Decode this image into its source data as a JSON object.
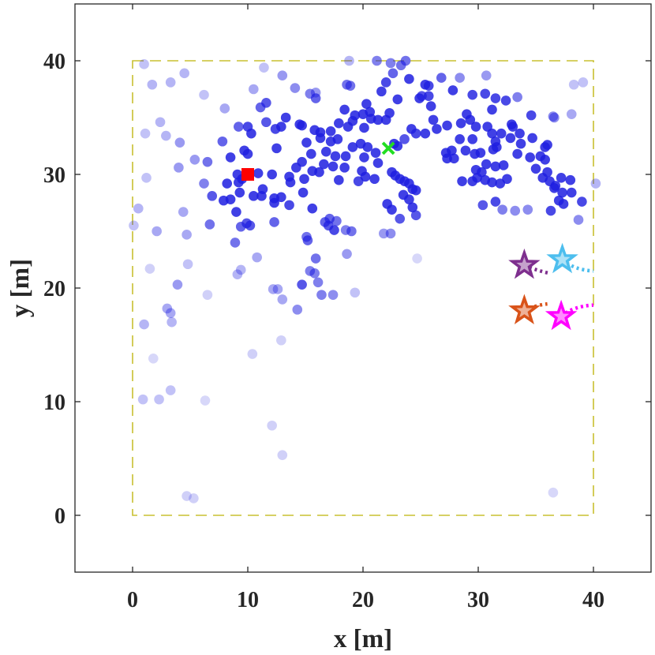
{
  "chart_data": {
    "type": "scatter",
    "xlabel": "x [m]",
    "ylabel": "y [m]",
    "xlim": [
      -5,
      45
    ],
    "ylim": [
      -5,
      45
    ],
    "xticks": [
      "0",
      "10",
      "20",
      "30",
      "40"
    ],
    "yticks": [
      "0",
      "10",
      "20",
      "30",
      "40"
    ],
    "grid": false,
    "legend": "none",
    "boundary": {
      "x": [
        0,
        40
      ],
      "y": [
        0,
        40
      ],
      "style": "dashed",
      "color": "#c8c030"
    },
    "colors": {
      "points": "#1f1fe0",
      "boundary": "#c8c030",
      "square": "#ff0000",
      "cross": "#22dd22",
      "star_purple": "#7e2f8e",
      "star_cyan": "#4dbeee",
      "star_orange": "#d95319",
      "star_magenta": "#ff00ff"
    },
    "points": [
      [
        18.8,
        40.0
      ],
      [
        21.2,
        40.0
      ],
      [
        22.4,
        39.8
      ],
      [
        23.7,
        40.0
      ],
      [
        23.3,
        39.6
      ],
      [
        22.6,
        38.9
      ],
      [
        25.4,
        37.9
      ],
      [
        26.8,
        38.5
      ],
      [
        28.4,
        38.5
      ],
      [
        30.7,
        38.7
      ],
      [
        24.0,
        38.4
      ],
      [
        25.7,
        37.8
      ],
      [
        22.0,
        38.1
      ],
      [
        18.6,
        37.9
      ],
      [
        18.9,
        37.8
      ],
      [
        21.6,
        37.3
      ],
      [
        15.4,
        37.1
      ],
      [
        15.9,
        37.2
      ],
      [
        15.9,
        36.7
      ],
      [
        20.3,
        36.2
      ],
      [
        25.7,
        36.9
      ],
      [
        24.9,
        36.7
      ],
      [
        25.1,
        36.9
      ],
      [
        25.9,
        36.0
      ],
      [
        23.0,
        36.6
      ],
      [
        27.8,
        37.4
      ],
      [
        29.5,
        37.0
      ],
      [
        30.6,
        37.1
      ],
      [
        31.5,
        36.7
      ],
      [
        31.2,
        35.7
      ],
      [
        32.4,
        36.5
      ],
      [
        33.4,
        36.8
      ],
      [
        18.4,
        35.7
      ],
      [
        19.3,
        35.2
      ],
      [
        20.0,
        35.3
      ],
      [
        20.6,
        35.5
      ],
      [
        20.7,
        34.9
      ],
      [
        21.3,
        34.8
      ],
      [
        22.3,
        35.4
      ],
      [
        22.0,
        34.8
      ],
      [
        20.1,
        34.1
      ],
      [
        19.1,
        34.7
      ],
      [
        18.7,
        34.2
      ],
      [
        17.9,
        34.5
      ],
      [
        17.2,
        33.8
      ],
      [
        16.3,
        33.7
      ],
      [
        17.8,
        33.1
      ],
      [
        17.2,
        32.9
      ],
      [
        16.3,
        33.2
      ],
      [
        15.1,
        32.8
      ],
      [
        15.5,
        31.8
      ],
      [
        16.8,
        32.0
      ],
      [
        17.6,
        31.6
      ],
      [
        18.5,
        31.6
      ],
      [
        19.1,
        32.4
      ],
      [
        19.8,
        32.7
      ],
      [
        20.4,
        32.4
      ],
      [
        20.1,
        31.5
      ],
      [
        21.1,
        31.9
      ],
      [
        21.3,
        31.0
      ],
      [
        22.7,
        32.7
      ],
      [
        23.0,
        32.5
      ],
      [
        23.6,
        33.1
      ],
      [
        24.2,
        34.0
      ],
      [
        24.6,
        33.6
      ],
      [
        25.4,
        33.6
      ],
      [
        26.4,
        34.0
      ],
      [
        26.1,
        34.8
      ],
      [
        27.3,
        34.3
      ],
      [
        28.5,
        34.5
      ],
      [
        29.0,
        35.3
      ],
      [
        29.3,
        34.8
      ],
      [
        29.8,
        34.2
      ],
      [
        29.5,
        33.1
      ],
      [
        30.8,
        34.2
      ],
      [
        31.2,
        33.6
      ],
      [
        31.5,
        32.9
      ],
      [
        31.6,
        32.4
      ],
      [
        32.0,
        33.6
      ],
      [
        32.8,
        33.2
      ],
      [
        33.6,
        33.6
      ],
      [
        33.7,
        32.7
      ],
      [
        32.9,
        34.4
      ],
      [
        28.4,
        33.1
      ],
      [
        27.7,
        32.1
      ],
      [
        27.2,
        31.9
      ],
      [
        27.3,
        31.4
      ],
      [
        27.9,
        31.4
      ],
      [
        28.9,
        32.1
      ],
      [
        29.7,
        31.8
      ],
      [
        30.2,
        31.9
      ],
      [
        31.3,
        32.2
      ],
      [
        30.7,
        30.9
      ],
      [
        31.5,
        30.7
      ],
      [
        32.2,
        30.8
      ],
      [
        30.3,
        30.2
      ],
      [
        29.8,
        30.4
      ],
      [
        29.9,
        29.7
      ],
      [
        30.6,
        29.5
      ],
      [
        31.2,
        29.3
      ],
      [
        31.9,
        29.2
      ],
      [
        32.5,
        29.6
      ],
      [
        29.5,
        29.4
      ],
      [
        28.6,
        29.4
      ],
      [
        22.5,
        30.2
      ],
      [
        22.8,
        29.9
      ],
      [
        23.2,
        29.6
      ],
      [
        23.6,
        29.4
      ],
      [
        24.0,
        29.2
      ],
      [
        24.3,
        28.7
      ],
      [
        23.5,
        28.2
      ],
      [
        24.0,
        27.8
      ],
      [
        24.6,
        28.6
      ],
      [
        24.3,
        27.1
      ],
      [
        24.6,
        26.4
      ],
      [
        23.2,
        26.1
      ],
      [
        22.1,
        27.4
      ],
      [
        22.5,
        26.9
      ],
      [
        22.4,
        24.8
      ],
      [
        21.8,
        24.8
      ],
      [
        21.0,
        29.6
      ],
      [
        20.2,
        29.8
      ],
      [
        19.6,
        29.4
      ],
      [
        19.9,
        30.3
      ],
      [
        18.4,
        30.6
      ],
      [
        17.9,
        29.5
      ],
      [
        17.4,
        30.7
      ],
      [
        16.6,
        30.9
      ],
      [
        16.2,
        30.2
      ],
      [
        15.6,
        30.3
      ],
      [
        14.9,
        29.6
      ],
      [
        14.7,
        31.1
      ],
      [
        14.2,
        30.6
      ],
      [
        13.6,
        29.8
      ],
      [
        13.7,
        29.3
      ],
      [
        12.1,
        30.0
      ],
      [
        11.3,
        28.7
      ],
      [
        11.2,
        28.1
      ],
      [
        12.3,
        27.5
      ],
      [
        12.9,
        28.0
      ],
      [
        13.6,
        27.3
      ],
      [
        14.8,
        28.4
      ],
      [
        15.6,
        27.0
      ],
      [
        16.7,
        25.8
      ],
      [
        17.0,
        25.5
      ],
      [
        17.1,
        26.1
      ],
      [
        17.7,
        25.9
      ],
      [
        17.5,
        25.1
      ],
      [
        18.5,
        25.1
      ],
      [
        19.0,
        25.0
      ],
      [
        15.1,
        24.5
      ],
      [
        15.2,
        24.2
      ],
      [
        15.9,
        22.6
      ],
      [
        15.8,
        21.3
      ],
      [
        16.1,
        20.5
      ],
      [
        15.4,
        21.5
      ],
      [
        16.4,
        19.4
      ],
      [
        17.4,
        19.4
      ],
      [
        14.7,
        20.3
      ],
      [
        13.0,
        19.0
      ],
      [
        12.2,
        19.9
      ],
      [
        12.6,
        19.9
      ],
      [
        14.3,
        18.1
      ],
      [
        18.6,
        23.0
      ],
      [
        19.3,
        19.6
      ],
      [
        12.3,
        25.8
      ],
      [
        12.3,
        27.9
      ],
      [
        12.5,
        32.3
      ],
      [
        12.4,
        34.0
      ],
      [
        12.9,
        34.2
      ],
      [
        14.5,
        34.4
      ],
      [
        14.7,
        34.3
      ],
      [
        15.8,
        33.9
      ],
      [
        13.3,
        35.0
      ],
      [
        11.6,
        34.6
      ],
      [
        10.0,
        34.2
      ],
      [
        11.1,
        35.9
      ],
      [
        11.6,
        36.3
      ],
      [
        14.1,
        37.6
      ],
      [
        13.0,
        38.7
      ],
      [
        10.5,
        37.5
      ],
      [
        9.9,
        29.9
      ],
      [
        9.5,
        29.6
      ],
      [
        10.9,
        30.1
      ],
      [
        10.0,
        31.8
      ],
      [
        10.3,
        33.6
      ],
      [
        9.7,
        32.1
      ],
      [
        9.2,
        29.3
      ],
      [
        9.4,
        25.4
      ],
      [
        9.9,
        25.7
      ],
      [
        10.2,
        25.5
      ],
      [
        9.4,
        21.6
      ],
      [
        9.1,
        21.2
      ],
      [
        10.4,
        14.2
      ],
      [
        12.9,
        15.4
      ],
      [
        12.1,
        7.9
      ],
      [
        13.0,
        5.3
      ],
      [
        11.4,
        39.4
      ],
      [
        33.0,
        34.2
      ],
      [
        34.6,
        35.2
      ],
      [
        34.7,
        33.2
      ],
      [
        33.4,
        31.8
      ],
      [
        34.5,
        31.5
      ],
      [
        35.8,
        31.3
      ],
      [
        35.0,
        30.5
      ],
      [
        35.6,
        29.7
      ],
      [
        36.5,
        35.1
      ],
      [
        36.6,
        35.0
      ],
      [
        35.4,
        31.6
      ],
      [
        36.0,
        30.2
      ],
      [
        36.6,
        28.8
      ],
      [
        36.7,
        29.0
      ],
      [
        37.3,
        28.4
      ],
      [
        37.0,
        27.7
      ],
      [
        37.4,
        27.4
      ],
      [
        38.1,
        28.4
      ],
      [
        38.0,
        29.5
      ],
      [
        39.0,
        27.6
      ],
      [
        38.7,
        26.0
      ],
      [
        35.8,
        32.4
      ],
      [
        32.1,
        26.9
      ],
      [
        31.5,
        27.6
      ],
      [
        30.4,
        27.3
      ],
      [
        33.2,
        26.8
      ],
      [
        34.3,
        26.9
      ],
      [
        36.3,
        26.8
      ],
      [
        37.2,
        29.7
      ],
      [
        38.1,
        35.3
      ],
      [
        38.3,
        37.9
      ],
      [
        39.1,
        38.1
      ],
      [
        40.2,
        29.2
      ],
      [
        36.5,
        2.0
      ],
      [
        36.2,
        29.4
      ],
      [
        36.0,
        32.6
      ],
      [
        24.7,
        22.6
      ],
      [
        1.0,
        39.7
      ],
      [
        1.7,
        37.9
      ],
      [
        2.4,
        34.6
      ],
      [
        2.9,
        33.4
      ],
      [
        3.3,
        38.1
      ],
      [
        4.5,
        38.9
      ],
      [
        4.1,
        32.8
      ],
      [
        6.2,
        37.0
      ],
      [
        6.5,
        31.1
      ],
      [
        8.0,
        35.8
      ],
      [
        9.2,
        34.2
      ],
      [
        7.8,
        32.9
      ],
      [
        8.5,
        31.5
      ],
      [
        9.1,
        30.0
      ],
      [
        8.2,
        29.2
      ],
      [
        8.5,
        27.8
      ],
      [
        9.3,
        28.4
      ],
      [
        10.5,
        28.1
      ],
      [
        4.4,
        26.7
      ],
      [
        4.7,
        24.7
      ],
      [
        2.1,
        25.0
      ],
      [
        0.1,
        25.5
      ],
      [
        0.5,
        27.0
      ],
      [
        1.2,
        29.7
      ],
      [
        1.1,
        33.6
      ],
      [
        6.2,
        29.2
      ],
      [
        6.9,
        28.1
      ],
      [
        7.9,
        27.7
      ],
      [
        5.4,
        31.3
      ],
      [
        4.0,
        30.6
      ],
      [
        6.5,
        19.4
      ],
      [
        3.9,
        20.3
      ],
      [
        3.0,
        18.2
      ],
      [
        3.4,
        17.0
      ],
      [
        3.3,
        17.8
      ],
      [
        1.5,
        21.7
      ],
      [
        4.8,
        22.1
      ],
      [
        1.0,
        16.8
      ],
      [
        1.8,
        13.8
      ],
      [
        2.3,
        10.2
      ],
      [
        3.3,
        11.0
      ],
      [
        0.9,
        10.2
      ],
      [
        6.3,
        10.1
      ],
      [
        4.7,
        1.7
      ],
      [
        5.3,
        1.5
      ],
      [
        8.9,
        24.0
      ],
      [
        6.7,
        25.6
      ],
      [
        9.0,
        26.7
      ],
      [
        10.8,
        22.7
      ]
    ],
    "markers": [
      {
        "type": "square",
        "x": 10.0,
        "y": 30.0,
        "color": "#ff0000"
      },
      {
        "type": "cross",
        "x": 22.2,
        "y": 32.3,
        "color": "#22dd22"
      },
      {
        "type": "star",
        "x": 34.0,
        "y": 22.0,
        "color": "#7e2f8e"
      },
      {
        "type": "star",
        "x": 37.3,
        "y": 22.5,
        "color": "#4dbeee"
      },
      {
        "type": "star",
        "x": 34.0,
        "y": 18.0,
        "color": "#d95319"
      },
      {
        "type": "star",
        "x": 37.2,
        "y": 17.5,
        "color": "#ff00ff"
      }
    ],
    "trails": [
      {
        "color": "#7e2f8e",
        "points": [
          [
            34.0,
            22.0
          ],
          [
            35.2,
            21.5
          ],
          [
            36.2,
            21.3
          ]
        ]
      },
      {
        "color": "#4dbeee",
        "points": [
          [
            37.3,
            22.5
          ],
          [
            38.3,
            21.6
          ],
          [
            40.0,
            21.5
          ]
        ]
      },
      {
        "color": "#d95319",
        "points": [
          [
            34.0,
            18.0
          ],
          [
            35.0,
            18.5
          ],
          [
            36.0,
            18.6
          ]
        ]
      },
      {
        "color": "#ff00ff",
        "points": [
          [
            37.2,
            17.5
          ],
          [
            38.2,
            18.4
          ],
          [
            40.0,
            18.5
          ]
        ]
      }
    ]
  }
}
